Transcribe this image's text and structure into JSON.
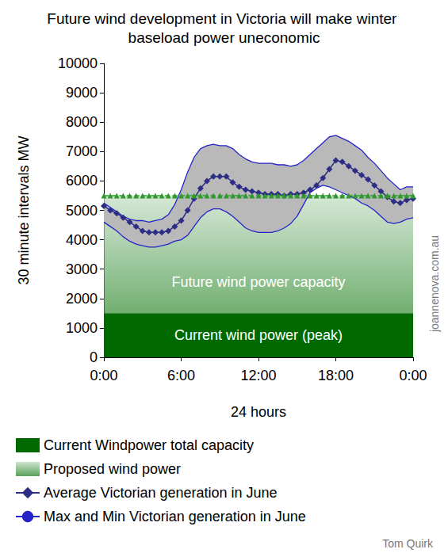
{
  "chart_data": {
    "type": "line",
    "title": "Future wind development in Victoria will make winter baseload power uneconomic",
    "xlabel": "24 hours",
    "ylabel": "30 minute intervals MW",
    "x": [
      0,
      0.5,
      1,
      1.5,
      2,
      2.5,
      3,
      3.5,
      4,
      4.5,
      5,
      5.5,
      6,
      6.5,
      7,
      7.5,
      8,
      8.5,
      9,
      9.5,
      10,
      10.5,
      11,
      11.5,
      12,
      12.5,
      13,
      13.5,
      14,
      14.5,
      15,
      15.5,
      16,
      16.5,
      17,
      17.5,
      18,
      18.5,
      19,
      19.5,
      20,
      20.5,
      21,
      21.5,
      22,
      22.5,
      23,
      23.5,
      24
    ],
    "xlim": [
      0,
      24
    ],
    "xticks": [
      {
        "value": 0,
        "label": "0:00"
      },
      {
        "value": 6,
        "label": "6:00"
      },
      {
        "value": 12,
        "label": "12:00"
      },
      {
        "value": 18,
        "label": "18:00"
      },
      {
        "value": 24,
        "label": "0:00"
      }
    ],
    "ylim": [
      0,
      10000
    ],
    "yticks": [
      0,
      1000,
      2000,
      3000,
      4000,
      5000,
      6000,
      7000,
      8000,
      9000,
      10000
    ],
    "grid": false,
    "annotations": [
      "joannenova.com.au",
      "Tom Quirk"
    ],
    "series": [
      {
        "name": "Current Windpower total capacity",
        "type": "band",
        "color": "#006a00",
        "value": 1500,
        "label": "Current wind power (peak)"
      },
      {
        "name": "Proposed wind power",
        "type": "band",
        "color": "#2e9a2e",
        "value": 5500,
        "label": "Future wind power capacity",
        "marker": "triangle",
        "line_style": "dashed"
      },
      {
        "name": "Average Victorian generation in June",
        "type": "line",
        "color": "#2d2d86",
        "marker": "diamond",
        "values": [
          5150,
          5000,
          4900,
          4750,
          4600,
          4450,
          4300,
          4250,
          4250,
          4250,
          4300,
          4450,
          4650,
          5000,
          5400,
          5750,
          6000,
          6150,
          6150,
          6150,
          5950,
          5800,
          5700,
          5650,
          5600,
          5550,
          5550,
          5550,
          5500,
          5550,
          5550,
          5600,
          5700,
          5850,
          6100,
          6400,
          6700,
          6650,
          6500,
          6350,
          6200,
          6050,
          5850,
          5650,
          5450,
          5300,
          5250,
          5350,
          5400
        ]
      },
      {
        "name": "Max and Min Victorian generation in June",
        "type": "range",
        "color": "#2424c8",
        "max": [
          5250,
          5100,
          4950,
          4800,
          4700,
          4650,
          4650,
          4600,
          4650,
          4700,
          4850,
          5200,
          5700,
          6300,
          6800,
          7100,
          7200,
          7250,
          7200,
          7200,
          7100,
          6900,
          6750,
          6650,
          6600,
          6600,
          6600,
          6550,
          6550,
          6500,
          6550,
          6700,
          6900,
          7100,
          7300,
          7500,
          7550,
          7450,
          7350,
          7200,
          7050,
          6800,
          6600,
          6350,
          6100,
          5900,
          5700,
          5800,
          5800
        ],
        "min": [
          4600,
          4450,
          4300,
          4100,
          3950,
          3850,
          3800,
          3750,
          3750,
          3800,
          3850,
          3950,
          4000,
          4150,
          4450,
          4750,
          4950,
          5050,
          5050,
          4950,
          4800,
          4600,
          4400,
          4300,
          4250,
          4250,
          4250,
          4300,
          4400,
          4550,
          4800,
          5200,
          5600,
          5750,
          5850,
          5800,
          5700,
          5600,
          5500,
          5400,
          5250,
          5150,
          5000,
          4800,
          4600,
          4550,
          4600,
          4700,
          4750
        ]
      }
    ]
  }
}
